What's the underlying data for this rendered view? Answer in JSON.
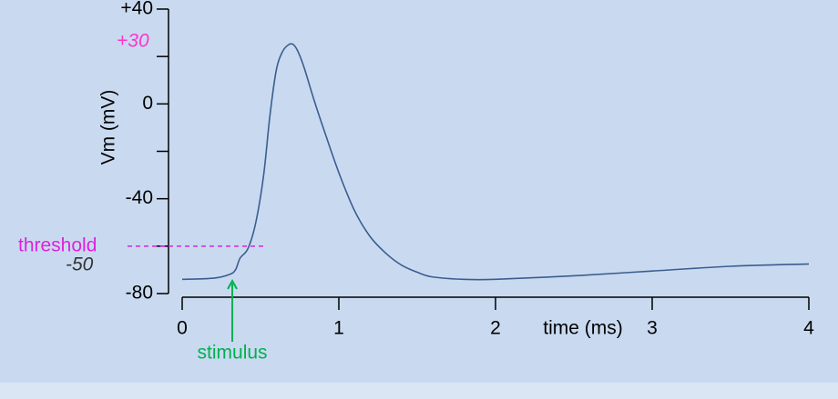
{
  "chart_data": {
    "type": "line",
    "x_label": "time (ms)",
    "y_label": "Vm (mV)",
    "xlim": [
      0,
      4
    ],
    "xticks": [
      0,
      1,
      2,
      3,
      4
    ],
    "ylim": [
      -80,
      40
    ],
    "yticks": [
      {
        "value": 40,
        "label": "+40"
      },
      {
        "value": 20,
        "label": null
      },
      {
        "value": 0,
        "label": "0"
      },
      {
        "value": -20,
        "label": null
      },
      {
        "value": -40,
        "label": "-40"
      },
      {
        "value": -60,
        "label": null
      },
      {
        "value": -80,
        "label": "-80"
      }
    ],
    "series": [
      {
        "color": "#3b5d8f",
        "x": [
          0,
          0.2,
          0.3,
          0.34,
          0.37,
          0.42,
          0.47,
          0.52,
          0.56,
          0.6,
          0.64,
          0.68,
          0.71,
          0.74,
          0.78,
          0.84,
          0.9,
          1.0,
          1.1,
          1.2,
          1.3,
          1.4,
          1.5,
          1.6,
          1.8,
          2.0,
          2.5,
          3.0,
          3.5,
          4.0
        ],
        "values": [
          -74,
          -73.5,
          -72,
          -70,
          -65,
          -61,
          -50,
          -30,
          -5,
          14,
          22,
          25,
          25,
          22,
          15,
          2,
          -10,
          -29,
          -45,
          -56,
          -63,
          -68,
          -71,
          -73,
          -74,
          -74,
          -72.5,
          -70.5,
          -68.5,
          -67.5
        ]
      }
    ],
    "annotations": [
      {
        "text": "+30",
        "color": "#ff33cc",
        "value": 30
      },
      {
        "text": "threshold",
        "color": "#dd22dd",
        "value": -60
      },
      {
        "text": "-50",
        "color": "#333333"
      },
      {
        "text": "stimulus",
        "color": "#00b050",
        "x": 0.32
      }
    ]
  }
}
